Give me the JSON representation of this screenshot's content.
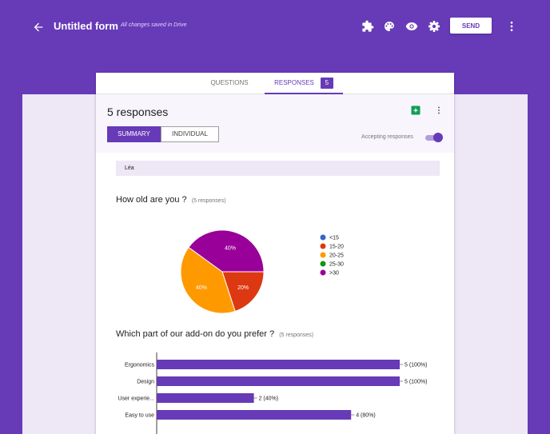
{
  "header": {
    "form_title": "Untitled form",
    "save_status": "All changes saved in Drive",
    "send_label": "SEND",
    "icons": [
      "back-arrow-icon",
      "addon-puzzle-icon",
      "palette-icon",
      "preview-eye-icon",
      "settings-gear-icon",
      "more-vert-icon"
    ]
  },
  "tabs": {
    "questions_label": "QUESTIONS",
    "responses_label": "RESPONSES",
    "responses_badge": "5"
  },
  "responses": {
    "count_title": "5 responses",
    "summary_label": "SUMMARY",
    "individual_label": "INDIVIDUAL",
    "accepting_label": "Accepting responses",
    "accepting": true
  },
  "respondent_name": "Léa",
  "questions": [
    {
      "title": "How old are you ?",
      "count": "(5 responses)"
    },
    {
      "title": "Which part of our add-on do you prefer ?",
      "count": "(5 responses)"
    }
  ],
  "colors": {
    "primary": "#673ab7",
    "background": "#ede7f6",
    "sheets_green": "#0f9d58"
  },
  "chart_data": [
    {
      "type": "pie",
      "categories": [
        "<15",
        "15-20",
        "20-25",
        "25-30",
        ">30"
      ],
      "values": [
        0,
        20,
        40,
        0,
        40
      ],
      "slice_labels": [
        "",
        "20%",
        "40%",
        "",
        "40%"
      ],
      "colors": [
        "#3366cc",
        "#dc3912",
        "#ff9900",
        "#109618",
        "#990099"
      ],
      "legend_position": "right"
    },
    {
      "type": "bar",
      "orientation": "horizontal",
      "categories": [
        "Ergonomics",
        "Design",
        "User experie...",
        "Easy to use"
      ],
      "values": [
        5,
        5,
        2,
        4
      ],
      "value_labels": [
        "5 (100%)",
        "5 (100%)",
        "2 (40%)",
        "4 (80%)"
      ],
      "xlim": [
        0,
        5
      ],
      "color": "#673ab7"
    }
  ]
}
